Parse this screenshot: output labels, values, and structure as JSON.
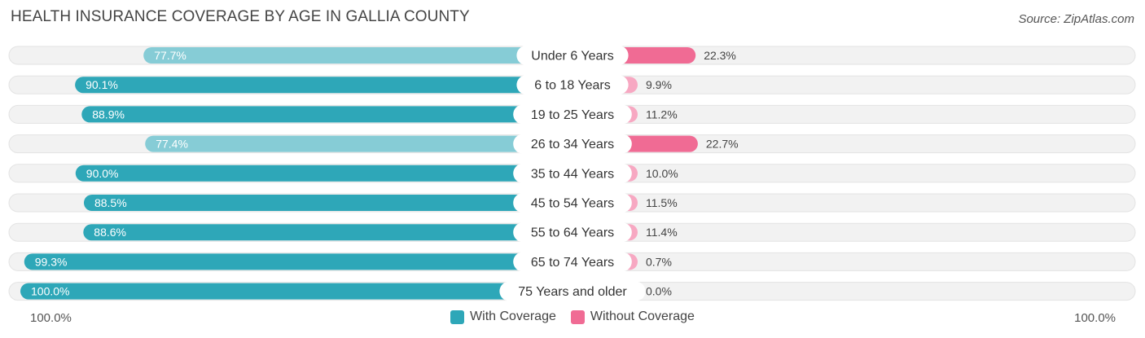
{
  "header": {
    "title": "HEALTH INSURANCE COVERAGE BY AGE IN GALLIA COUNTY",
    "source": "Source: ZipAtlas.com"
  },
  "footer": {
    "left_label": "100.0%",
    "right_label": "100.0%"
  },
  "legend": {
    "with_label": "With Coverage",
    "without_label": "Without Coverage"
  },
  "colors": {
    "with_strong": "#2ea7b8",
    "with_light": "#86ccd6",
    "without_strong": "#f06b94",
    "without_light": "#f7a8c2",
    "track": "#f2f2f2"
  },
  "chart_data": {
    "type": "bar",
    "orientation": "horizontal-diverging",
    "title": "HEALTH INSURANCE COVERAGE BY AGE IN GALLIA COUNTY",
    "categories": [
      "Under 6 Years",
      "6 to 18 Years",
      "19 to 25 Years",
      "26 to 34 Years",
      "35 to 44 Years",
      "45 to 54 Years",
      "55 to 64 Years",
      "65 to 74 Years",
      "75 Years and older"
    ],
    "series": [
      {
        "name": "With Coverage",
        "values": [
          77.7,
          90.1,
          88.9,
          77.4,
          90.0,
          88.5,
          88.6,
          99.3,
          100.0
        ],
        "labels": [
          "77.7%",
          "90.1%",
          "88.9%",
          "77.4%",
          "90.0%",
          "88.5%",
          "88.6%",
          "99.3%",
          "100.0%"
        ]
      },
      {
        "name": "Without Coverage",
        "values": [
          22.3,
          9.9,
          11.2,
          22.7,
          10.0,
          11.5,
          11.4,
          0.7,
          0.0
        ],
        "labels": [
          "22.3%",
          "9.9%",
          "11.2%",
          "22.7%",
          "10.0%",
          "11.5%",
          "11.4%",
          "0.7%",
          "0.0%"
        ]
      }
    ],
    "xlim": [
      0,
      100
    ],
    "legend_position": "bottom-center"
  }
}
